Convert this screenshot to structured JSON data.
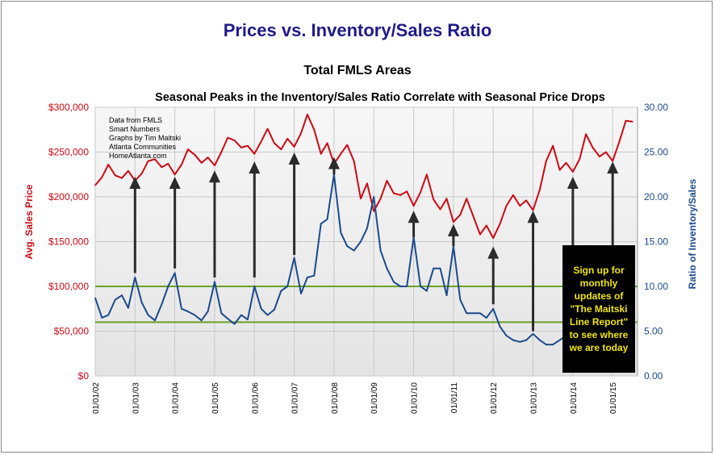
{
  "chart_data": {
    "type": "line",
    "title": "Prices vs. Inventory/Sales Ratio",
    "subtitle": "Total FMLS Areas",
    "subtitle2": "Seasonal Peaks in the Inventory/Sales Ratio Correlate with Seasonal Price Drops",
    "ylabel_left": "Avg. Sales Price",
    "ylabel_right": "Ratio of Inventory/Sales",
    "ylim_left": [
      0,
      300000
    ],
    "ylim_right": [
      0,
      30
    ],
    "y_ticks_left": [
      "$0",
      "$50,000",
      "$100,000",
      "$150,000",
      "$200,000",
      "$250,000",
      "$300,000"
    ],
    "y_ticks_right": [
      "0.00",
      "5.00",
      "10.00",
      "15.00",
      "20.00",
      "25.00",
      "30.00"
    ],
    "x_ticks": [
      "01/01/02",
      "01/01/03",
      "01/01/04",
      "01/01/05",
      "01/01/06",
      "01/01/07",
      "01/01/08",
      "01/01/09",
      "01/01/10",
      "01/01/11",
      "01/01/12",
      "01/01/13",
      "01/01/14",
      "01/01/15"
    ],
    "grid": true,
    "reference_lines_right_axis": [
      10,
      6
    ],
    "annotation": "Data from FMLS\nSmart Numbers\nGraphs by Tim Maitski\nAtlanta Communities\nHomeAtlanta.com",
    "callout": "Sign up for monthly updates of \"The Maitski Line Report\" to see where we are today",
    "arrows": [
      {
        "year": 2003,
        "from_ratio": 11.5,
        "to_ratio": 21.8
      },
      {
        "year": 2004,
        "from_ratio": 12.0,
        "to_ratio": 21.8
      },
      {
        "year": 2005,
        "from_ratio": 11.0,
        "to_ratio": 22.5
      },
      {
        "year": 2006,
        "from_ratio": 11.0,
        "to_ratio": 23.5
      },
      {
        "year": 2007,
        "from_ratio": 13.5,
        "to_ratio": 24.5
      },
      {
        "year": 2008,
        "from_ratio": 22.5,
        "to_ratio": 24.0
      },
      {
        "year": 2010,
        "from_ratio": 15.5,
        "to_ratio": 18.0
      },
      {
        "year": 2011,
        "from_ratio": 14.5,
        "to_ratio": 16.5
      },
      {
        "year": 2012,
        "from_ratio": 8.0,
        "to_ratio": 14.0
      },
      {
        "year": 2013,
        "from_ratio": 5.0,
        "to_ratio": 18.0
      },
      {
        "year": 2014,
        "from_ratio": 5.5,
        "to_ratio": 21.8
      },
      {
        "year": 2015,
        "from_ratio": 14.0,
        "to_ratio": 23.5
      }
    ],
    "series": [
      {
        "name": "Avg. Sales Price",
        "axis": "left",
        "color": "#cc0a14",
        "x": [
          2002.0,
          2002.17,
          2002.33,
          2002.5,
          2002.67,
          2002.83,
          2003.0,
          2003.17,
          2003.33,
          2003.5,
          2003.67,
          2003.83,
          2004.0,
          2004.17,
          2004.33,
          2004.5,
          2004.67,
          2004.83,
          2005.0,
          2005.17,
          2005.33,
          2005.5,
          2005.67,
          2005.83,
          2006.0,
          2006.17,
          2006.33,
          2006.5,
          2006.67,
          2006.83,
          2007.0,
          2007.17,
          2007.33,
          2007.5,
          2007.67,
          2007.83,
          2008.0,
          2008.17,
          2008.33,
          2008.5,
          2008.67,
          2008.83,
          2009.0,
          2009.17,
          2009.33,
          2009.5,
          2009.67,
          2009.83,
          2010.0,
          2010.17,
          2010.33,
          2010.5,
          2010.67,
          2010.83,
          2011.0,
          2011.17,
          2011.33,
          2011.5,
          2011.67,
          2011.83,
          2012.0,
          2012.17,
          2012.33,
          2012.5,
          2012.67,
          2012.83,
          2013.0,
          2013.17,
          2013.33,
          2013.5,
          2013.67,
          2013.83,
          2014.0,
          2014.17,
          2014.33,
          2014.5,
          2014.67,
          2014.83,
          2015.0,
          2015.17,
          2015.33,
          2015.5
        ],
        "values": [
          213000,
          222000,
          236000,
          224000,
          221000,
          229000,
          218000,
          226000,
          240000,
          242000,
          233000,
          237000,
          225000,
          236000,
          253000,
          247000,
          238000,
          244000,
          235000,
          250000,
          266000,
          263000,
          255000,
          257000,
          248000,
          262000,
          276000,
          260000,
          253000,
          265000,
          256000,
          271000,
          292000,
          275000,
          248000,
          260000,
          237000,
          248000,
          258000,
          240000,
          198000,
          215000,
          184000,
          198000,
          218000,
          204000,
          202000,
          206000,
          190000,
          205000,
          225000,
          197000,
          186000,
          198000,
          172000,
          180000,
          198000,
          178000,
          158000,
          168000,
          154000,
          170000,
          190000,
          202000,
          190000,
          196000,
          185000,
          208000,
          240000,
          257000,
          230000,
          238000,
          228000,
          242000,
          270000,
          255000,
          245000,
          250000,
          240000,
          262000,
          285000,
          284000
        ]
      },
      {
        "name": "Ratio of Inventory/Sales",
        "axis": "right",
        "color": "#1a4a8c",
        "x": [
          2002.0,
          2002.17,
          2002.33,
          2002.5,
          2002.67,
          2002.83,
          2003.0,
          2003.17,
          2003.33,
          2003.5,
          2003.67,
          2003.83,
          2004.0,
          2004.17,
          2004.33,
          2004.5,
          2004.67,
          2004.83,
          2005.0,
          2005.17,
          2005.33,
          2005.5,
          2005.67,
          2005.83,
          2006.0,
          2006.17,
          2006.33,
          2006.5,
          2006.67,
          2006.83,
          2007.0,
          2007.17,
          2007.33,
          2007.5,
          2007.67,
          2007.83,
          2008.0,
          2008.17,
          2008.33,
          2008.5,
          2008.67,
          2008.83,
          2009.0,
          2009.17,
          2009.33,
          2009.5,
          2009.67,
          2009.83,
          2010.0,
          2010.17,
          2010.33,
          2010.5,
          2010.67,
          2010.83,
          2011.0,
          2011.17,
          2011.33,
          2011.5,
          2011.67,
          2011.83,
          2012.0,
          2012.17,
          2012.33,
          2012.5,
          2012.67,
          2012.83,
          2013.0,
          2013.17,
          2013.33,
          2013.5,
          2013.67,
          2013.83,
          2014.0,
          2014.17,
          2014.33,
          2014.5,
          2014.67,
          2014.83,
          2015.0,
          2015.17,
          2015.33,
          2015.5
        ],
        "values": [
          8.7,
          6.5,
          6.8,
          8.5,
          9.0,
          7.6,
          11.0,
          8.2,
          6.8,
          6.2,
          8.0,
          10.0,
          11.5,
          7.5,
          7.2,
          6.8,
          6.2,
          7.2,
          10.5,
          7.0,
          6.4,
          5.8,
          6.8,
          6.3,
          10.0,
          7.5,
          6.8,
          7.4,
          9.5,
          10.0,
          13.2,
          9.2,
          11.0,
          11.2,
          17.0,
          17.5,
          22.5,
          16.0,
          14.5,
          14.0,
          15.0,
          16.5,
          20.0,
          14.0,
          12.0,
          10.5,
          10.0,
          10.0,
          15.5,
          10.0,
          9.5,
          12.0,
          12.0,
          9.0,
          14.5,
          8.5,
          7.0,
          7.0,
          7.0,
          6.5,
          7.5,
          5.5,
          4.5,
          4.0,
          3.8,
          4.0,
          4.7,
          4.0,
          3.5,
          3.5,
          4.0,
          4.5,
          4.5,
          5.5,
          6.0,
          4.8,
          5.5,
          6.5,
          6.5,
          7.0,
          6.0,
          5.5
        ]
      }
    ]
  }
}
